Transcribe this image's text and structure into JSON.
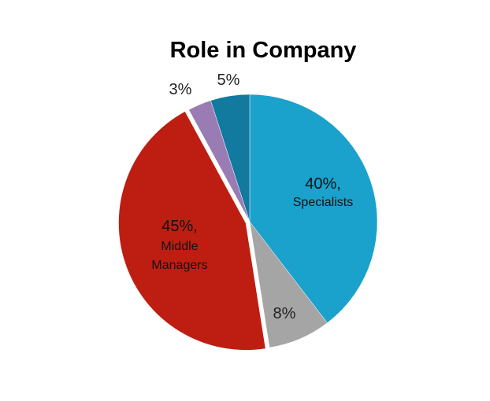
{
  "chart_data": {
    "type": "pie",
    "title": "Role in Company",
    "start": "top",
    "direction": "clockwise",
    "slices": [
      {
        "label": "Specialists",
        "value": 40,
        "display": "40%,",
        "color": "#1aa1cc",
        "label_inside": true
      },
      {
        "label": "",
        "value": 8,
        "display": "8%",
        "color": "#a5a5a5",
        "label_inside": false
      },
      {
        "label": "Middle Managers",
        "value": 45,
        "display": "45%,",
        "color": "#be1e12",
        "label_inside": true,
        "exploded": true
      },
      {
        "label": "",
        "value": 3,
        "display": "3%",
        "color": "#9a7cb4",
        "label_inside": false
      },
      {
        "label": "",
        "value": 5,
        "display": "5%",
        "color": "#12799f",
        "label_inside": false
      }
    ]
  }
}
